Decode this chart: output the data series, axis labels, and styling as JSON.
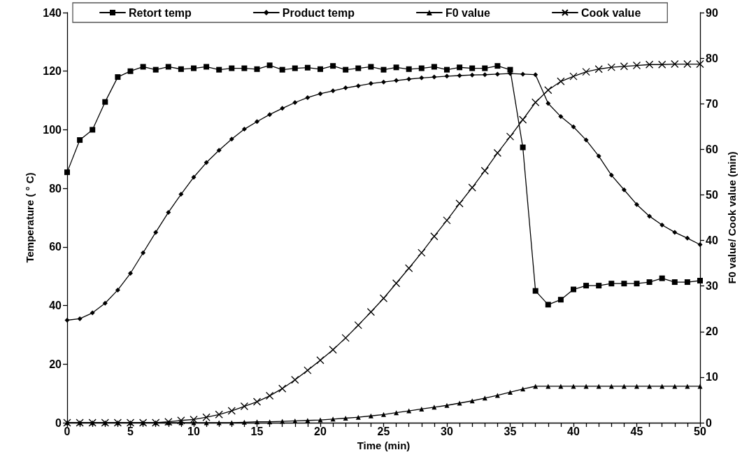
{
  "chart_data": {
    "type": "line",
    "xlabel": "Time (min)",
    "ylabel": "Temperature ( ° C)",
    "y2label": "F0 value/ Cook value (min)",
    "x": [
      0,
      1,
      2,
      3,
      4,
      5,
      6,
      7,
      8,
      9,
      10,
      11,
      12,
      13,
      14,
      15,
      16,
      17,
      18,
      19,
      20,
      21,
      22,
      23,
      24,
      25,
      26,
      27,
      28,
      29,
      30,
      31,
      32,
      33,
      34,
      35,
      36,
      37,
      38,
      39,
      40,
      41,
      42,
      43,
      44,
      45,
      46,
      47,
      48,
      49,
      50
    ],
    "series": [
      {
        "name": "Retort temp",
        "color": "#000000",
        "marker": "square",
        "values": [
          85.5,
          96.5,
          100,
          109.5,
          118,
          120,
          121.5,
          120.5,
          121.5,
          120.7,
          121,
          121.5,
          120.5,
          121,
          121,
          120.7,
          122,
          120.5,
          121,
          121.2,
          120.7,
          121.8,
          120.5,
          121,
          121.5,
          120.5,
          121.3,
          120.7,
          121,
          121.5,
          120.5,
          121.3,
          121,
          121,
          121.8,
          120.5,
          94,
          45,
          40.3,
          42,
          45.5,
          46.8,
          46.8,
          47.5,
          47.5,
          47.5,
          48,
          49.3,
          48,
          48,
          48.5
        ]
      },
      {
        "name": "Product temp",
        "color": "#000000",
        "marker": "diamond",
        "values": [
          35,
          35.5,
          37.5,
          40.8,
          45.3,
          51,
          58,
          65,
          71.8,
          78,
          83.8,
          88.8,
          93,
          96.8,
          100.2,
          102.8,
          105.2,
          107.3,
          109.3,
          111,
          112.3,
          113.3,
          114.3,
          115,
          115.8,
          116.3,
          116.8,
          117.3,
          117.7,
          118,
          118.3,
          118.5,
          118.7,
          118.8,
          119,
          119.2,
          119,
          118.8,
          109,
          104.5,
          101,
          96.5,
          91,
          84.5,
          79.5,
          74.5,
          70.5,
          67.5,
          65,
          63,
          60.8
        ]
      },
      {
        "name": "F0 value",
        "color": "#000000",
        "marker": "triangle",
        "axis": "y2",
        "values": [
          0,
          0,
          0,
          0,
          0,
          0,
          0,
          0,
          0,
          0,
          0,
          0,
          0,
          0,
          0.1,
          0.2,
          0.2,
          0.3,
          0.4,
          0.5,
          0.6,
          0.8,
          1.0,
          1.2,
          1.5,
          1.8,
          2.2,
          2.6,
          3.0,
          3.4,
          3.8,
          4.3,
          4.8,
          5.4,
          6.0,
          6.7,
          7.4,
          8.0,
          8.0,
          8.0,
          8.0,
          8.0,
          8.0,
          8.0,
          8.0,
          8.0,
          8.0,
          8.0,
          8.0,
          8.0,
          8.0
        ]
      },
      {
        "name": "Cook value",
        "color": "#000000",
        "marker": "cross",
        "axis": "y2",
        "values": [
          0,
          0,
          0,
          0,
          0,
          0,
          0,
          0,
          0.2,
          0.5,
          0.7,
          1.2,
          1.8,
          2.6,
          3.6,
          4.6,
          5.9,
          7.5,
          9.4,
          11.5,
          13.7,
          16,
          18.6,
          21.4,
          24.3,
          27.3,
          30.6,
          33.9,
          37.3,
          40.9,
          44.4,
          48.1,
          51.6,
          55.3,
          59.2,
          62.8,
          66.5,
          70.3,
          73,
          74.9,
          76,
          77,
          77.6,
          78,
          78.2,
          78.4,
          78.6,
          78.6,
          78.7,
          78.7,
          78.7
        ]
      }
    ],
    "xlim": [
      0,
      50
    ],
    "xticks": [
      0,
      {
        "value": 1,
        "label": null
      },
      {
        "value": 2,
        "label": null
      },
      {
        "value": 3,
        "label": null
      },
      {
        "value": 4,
        "label": null
      },
      5,
      {
        "value": 6,
        "label": null
      },
      {
        "value": 7,
        "label": null
      },
      {
        "value": 8,
        "label": null
      },
      {
        "value": 9,
        "label": null
      },
      10,
      {
        "value": 11,
        "label": null
      },
      {
        "value": 12,
        "label": null
      },
      {
        "value": 13,
        "label": null
      },
      {
        "value": 14,
        "label": null
      },
      15,
      {
        "value": 16,
        "label": null
      },
      {
        "value": 17,
        "label": null
      },
      {
        "value": 18,
        "label": null
      },
      {
        "value": 19,
        "label": null
      },
      20,
      {
        "value": 21,
        "label": null
      },
      {
        "value": 22,
        "label": null
      },
      {
        "value": 23,
        "label": null
      },
      {
        "value": 24,
        "label": null
      },
      25,
      {
        "value": 26,
        "label": null
      },
      {
        "value": 27,
        "label": null
      },
      {
        "value": 28,
        "label": null
      },
      {
        "value": 29,
        "label": null
      },
      30,
      {
        "value": 31,
        "label": null
      },
      {
        "value": 32,
        "label": null
      },
      {
        "value": 33,
        "label": null
      },
      {
        "value": 34,
        "label": null
      },
      35,
      {
        "value": 36,
        "label": null
      },
      {
        "value": 37,
        "label": null
      },
      {
        "value": 38,
        "label": null
      },
      {
        "value": 39,
        "label": null
      },
      40,
      {
        "value": 41,
        "label": null
      },
      {
        "value": 42,
        "label": null
      },
      {
        "value": 43,
        "label": null
      },
      {
        "value": 44,
        "label": null
      },
      45,
      {
        "value": 46,
        "label": null
      },
      {
        "value": 47,
        "label": null
      },
      {
        "value": 48,
        "label": null
      },
      {
        "value": 49,
        "label": null
      },
      50
    ],
    "ylim": [
      0,
      140
    ],
    "yticks": [
      0,
      20,
      40,
      60,
      80,
      100,
      120,
      140
    ],
    "y2lim": [
      0,
      90
    ],
    "y2ticks": [
      0,
      10,
      20,
      30,
      40,
      50,
      60,
      70,
      80,
      90
    ],
    "grid": false,
    "legend": "top",
    "line_style": "solid"
  }
}
